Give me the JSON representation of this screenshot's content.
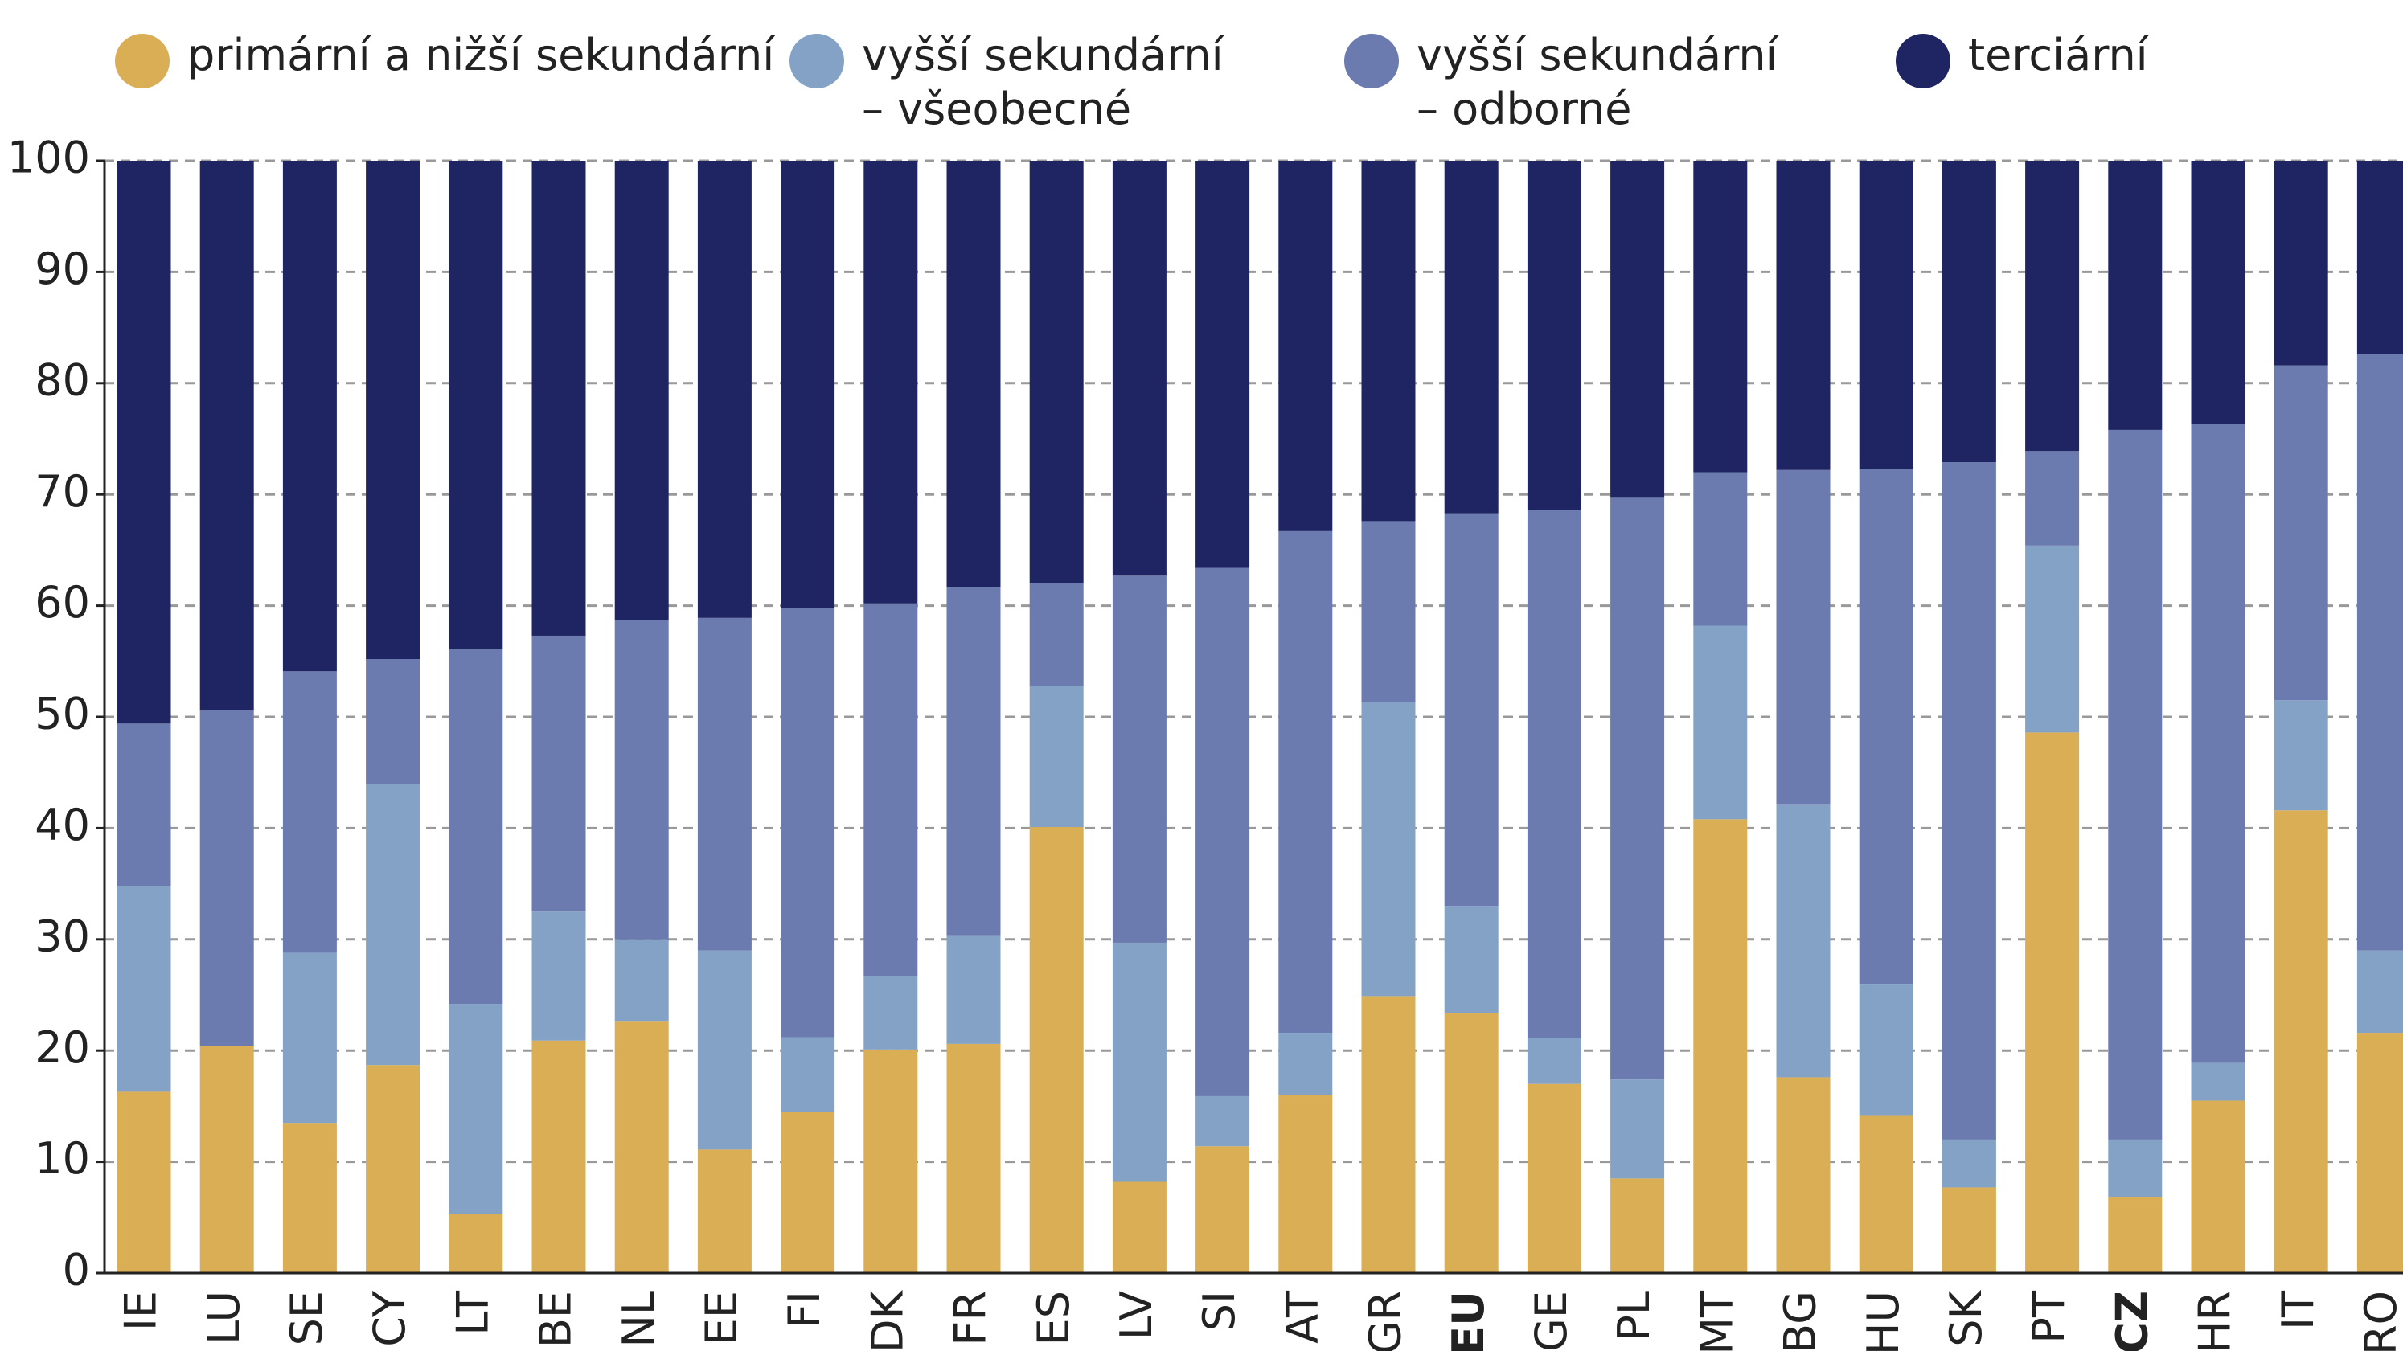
{
  "chart_data": {
    "type": "stacked_bar",
    "categories": [
      "IE",
      "LU",
      "SE",
      "CY",
      "LT",
      "BE",
      "NL",
      "EE",
      "FI",
      "DK",
      "FR",
      "ES",
      "LV",
      "SI",
      "AT",
      "GR",
      "EU",
      "GE",
      "PL",
      "MT",
      "BG",
      "HU",
      "SK",
      "PT",
      "CZ",
      "HR",
      "IT",
      "RO"
    ],
    "bold_categories": [
      16,
      24
    ],
    "series": [
      {
        "name": "primární a nižší sekundární",
        "color": "#d9ae55",
        "values": [
          16.3,
          20.4,
          13.5,
          18.7,
          5.3,
          20.9,
          22.6,
          11.1,
          14.5,
          20.1,
          20.6,
          40.1,
          8.2,
          11.4,
          16,
          24.9,
          23.4,
          17,
          8.5,
          40.8,
          17.6,
          14.2,
          7.7,
          48.6,
          6.8,
          15.5,
          41.6,
          21.6
        ]
      },
      {
        "name": "vyšší sekundární\n– všeobecné",
        "color": "#84a2c5",
        "values": [
          18.5,
          0,
          15.3,
          25.3,
          18.9,
          11.6,
          7.4,
          17.9,
          6.7,
          6.6,
          9.7,
          12.7,
          21.5,
          4.5,
          5.6,
          26.4,
          9.6,
          4.1,
          8.9,
          17.4,
          24.5,
          11.8,
          4.3,
          16.8,
          5.2,
          3.4,
          9.9,
          7.4
        ]
      },
      {
        "name": "vyšší sekundární\n– odborné",
        "color": "#6b7aaf",
        "values": [
          14.6,
          30.2,
          25.3,
          11.2,
          31.9,
          24.8,
          28.7,
          29.9,
          38.6,
          33.5,
          31.4,
          9.2,
          33,
          47.5,
          45.1,
          16.3,
          35.3,
          47.5,
          52.3,
          13.8,
          30.1,
          46.3,
          60.9,
          8.5,
          63.8,
          57.4,
          30.1,
          53.6
        ]
      },
      {
        "name": "terciární",
        "color": "#1f2563",
        "values": [
          50.6,
          49.4,
          45.9,
          44.8,
          43.9,
          42.7,
          41.3,
          41.1,
          40.2,
          39.8,
          38.3,
          38,
          37.3,
          36.6,
          33.3,
          32.4,
          31.7,
          31.4,
          30.3,
          28,
          27.8,
          27.7,
          27.1,
          26.1,
          24.2,
          23.7,
          18.4,
          17.4
        ]
      }
    ],
    "ylim": [
      0,
      100
    ],
    "yticks": [
      0,
      10,
      20,
      30,
      40,
      50,
      60,
      70,
      80,
      90,
      100
    ],
    "grid": true,
    "legend": "top"
  }
}
